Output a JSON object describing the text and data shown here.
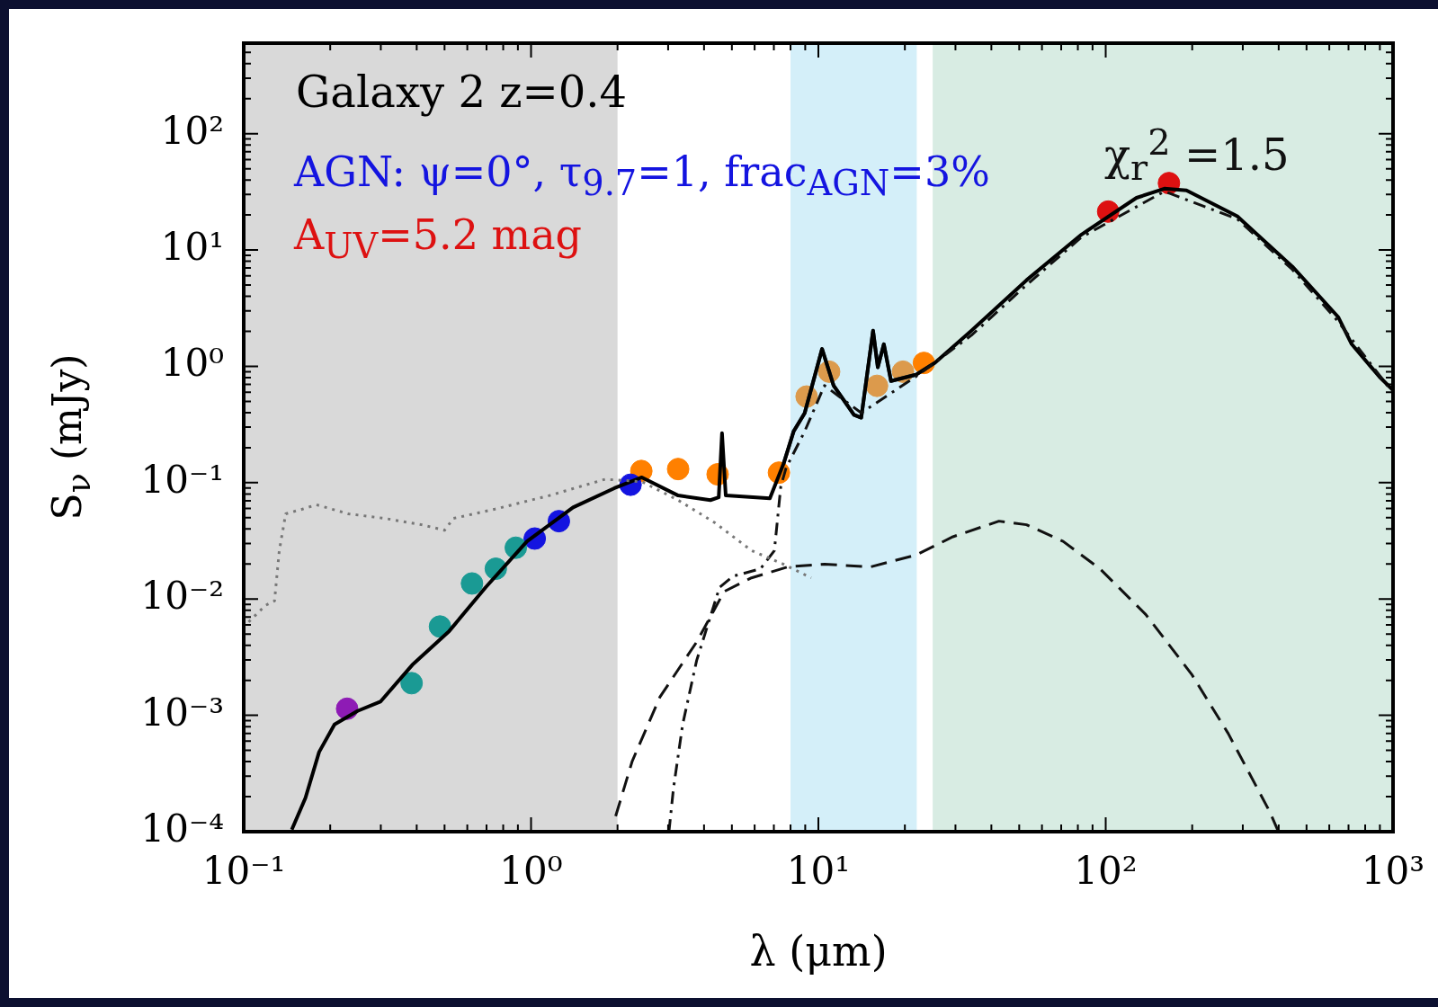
{
  "chart_data": {
    "type": "line",
    "xlabel": "λ (μm)",
    "ylabel": "S$_{ν}$ (mJy)",
    "log": "xy",
    "xlim": [
      0.1,
      1000
    ],
    "ylim": [
      0.0001,
      600
    ],
    "xticks": [
      {
        "value": 0.1,
        "label": "10⁻¹"
      },
      {
        "value": 0.2,
        "label": null
      },
      {
        "value": 0.3,
        "label": null
      },
      {
        "value": 0.4,
        "label": null
      },
      {
        "value": 0.5,
        "label": null
      },
      {
        "value": 0.6,
        "label": null
      },
      {
        "value": 0.7,
        "label": null
      },
      {
        "value": 0.8,
        "label": null
      },
      {
        "value": 0.9,
        "label": null
      },
      {
        "value": 1,
        "label": "10⁰"
      },
      {
        "value": 2,
        "label": null
      },
      {
        "value": 3,
        "label": null
      },
      {
        "value": 4,
        "label": null
      },
      {
        "value": 5,
        "label": null
      },
      {
        "value": 6,
        "label": null
      },
      {
        "value": 7,
        "label": null
      },
      {
        "value": 8,
        "label": null
      },
      {
        "value": 9,
        "label": null
      },
      {
        "value": 10,
        "label": "10¹"
      },
      {
        "value": 20,
        "label": null
      },
      {
        "value": 30,
        "label": null
      },
      {
        "value": 40,
        "label": null
      },
      {
        "value": 50,
        "label": null
      },
      {
        "value": 60,
        "label": null
      },
      {
        "value": 70,
        "label": null
      },
      {
        "value": 80,
        "label": null
      },
      {
        "value": 90,
        "label": null
      },
      {
        "value": 100,
        "label": "10²"
      },
      {
        "value": 200,
        "label": null
      },
      {
        "value": 300,
        "label": null
      },
      {
        "value": 400,
        "label": null
      },
      {
        "value": 500,
        "label": null
      },
      {
        "value": 600,
        "label": null
      },
      {
        "value": 700,
        "label": null
      },
      {
        "value": 800,
        "label": null
      },
      {
        "value": 900,
        "label": null
      },
      {
        "value": 1000,
        "label": "10³"
      }
    ],
    "yticks": [
      {
        "value": 0.0001,
        "label": "10⁻⁴"
      },
      {
        "value": 0.0002,
        "label": null
      },
      {
        "value": 0.0003,
        "label": null
      },
      {
        "value": 0.0004,
        "label": null
      },
      {
        "value": 0.0005,
        "label": null
      },
      {
        "value": 0.0006,
        "label": null
      },
      {
        "value": 0.0007,
        "label": null
      },
      {
        "value": 0.0008,
        "label": null
      },
      {
        "value": 0.0009,
        "label": null
      },
      {
        "value": 0.001,
        "label": "10⁻³"
      },
      {
        "value": 0.002,
        "label": null
      },
      {
        "value": 0.003,
        "label": null
      },
      {
        "value": 0.004,
        "label": null
      },
      {
        "value": 0.005,
        "label": null
      },
      {
        "value": 0.006,
        "label": null
      },
      {
        "value": 0.007,
        "label": null
      },
      {
        "value": 0.008,
        "label": null
      },
      {
        "value": 0.009,
        "label": null
      },
      {
        "value": 0.01,
        "label": "10⁻²"
      },
      {
        "value": 0.02,
        "label": null
      },
      {
        "value": 0.03,
        "label": null
      },
      {
        "value": 0.04,
        "label": null
      },
      {
        "value": 0.05,
        "label": null
      },
      {
        "value": 0.06,
        "label": null
      },
      {
        "value": 0.07,
        "label": null
      },
      {
        "value": 0.08,
        "label": null
      },
      {
        "value": 0.09,
        "label": null
      },
      {
        "value": 0.1,
        "label": "10⁻¹"
      },
      {
        "value": 0.2,
        "label": null
      },
      {
        "value": 0.3,
        "label": null
      },
      {
        "value": 0.4,
        "label": null
      },
      {
        "value": 0.5,
        "label": null
      },
      {
        "value": 0.6,
        "label": null
      },
      {
        "value": 0.7,
        "label": null
      },
      {
        "value": 0.8,
        "label": null
      },
      {
        "value": 0.9,
        "label": null
      },
      {
        "value": 1,
        "label": "10⁰"
      },
      {
        "value": 2,
        "label": null
      },
      {
        "value": 3,
        "label": null
      },
      {
        "value": 4,
        "label": null
      },
      {
        "value": 5,
        "label": null
      },
      {
        "value": 6,
        "label": null
      },
      {
        "value": 7,
        "label": null
      },
      {
        "value": 8,
        "label": null
      },
      {
        "value": 9,
        "label": null
      },
      {
        "value": 10,
        "label": "10¹"
      },
      {
        "value": 20,
        "label": null
      },
      {
        "value": 30,
        "label": null
      },
      {
        "value": 40,
        "label": null
      },
      {
        "value": 50,
        "label": null
      },
      {
        "value": 60,
        "label": null
      },
      {
        "value": 70,
        "label": null
      },
      {
        "value": 80,
        "label": null
      },
      {
        "value": 90,
        "label": null
      },
      {
        "value": 100,
        "label": "10²"
      },
      {
        "value": 200,
        "label": null
      },
      {
        "value": 300,
        "label": null
      },
      {
        "value": 400,
        "label": null
      },
      {
        "value": 500,
        "label": null
      }
    ],
    "bands": [
      {
        "axis": "x",
        "from": 0.1,
        "to": 2,
        "color": "#d9d9d9"
      },
      {
        "axis": "x",
        "from": 8,
        "to": 22,
        "color": "#d4eff9"
      },
      {
        "axis": "x",
        "from": 25,
        "to": 1000,
        "color": "#d8ece3"
      }
    ],
    "annotations": [
      "Galaxy 2 z=0.4",
      "AGN: ψ=0°, τ$_{9.7}$=1, frac$_{AGN}$=3%",
      "A$_{UV}$=5.2 mag",
      "χ$_{r}$$^{2}$ =1.5"
    ],
    "series": [
      {
        "type": "line",
        "color": "#777777",
        "line_style": "dotted",
        "marker": "none",
        "x": [
          0.104,
          0.119,
          0.128,
          0.133,
          0.14,
          0.16,
          0.179,
          0.231,
          0.31,
          0.416,
          0.5,
          0.537,
          0.748,
          1.16,
          1.81,
          2.43,
          3.25,
          4.37,
          5.85,
          7.57,
          9.44
        ],
        "values": [
          0.00635,
          0.00881,
          0.00964,
          0.0261,
          0.054,
          0.0592,
          0.0647,
          0.054,
          0.0493,
          0.0435,
          0.039,
          0.0493,
          0.0592,
          0.0776,
          0.107,
          0.102,
          0.0708,
          0.0451,
          0.0261,
          0.0199,
          0.0152
        ]
      },
      {
        "type": "line",
        "color": "#111111",
        "line_style": "dashed",
        "marker": "none",
        "x": [
          1.97,
          2.25,
          2.81,
          3.77,
          4.7,
          5.85,
          7.85,
          10.5,
          15.2,
          21.9,
          29.4,
          42.5,
          53,
          71.1,
          95.5,
          138,
          199,
          267,
          372,
          399
        ],
        "values": [
          0.000136,
          0.000404,
          0.00144,
          0.00427,
          0.0116,
          0.0152,
          0.0189,
          0.0199,
          0.0189,
          0.0239,
          0.0343,
          0.0467,
          0.0435,
          0.0313,
          0.0182,
          0.00734,
          0.00226,
          0.000697,
          0.000149,
          0.0001
        ]
      },
      {
        "type": "line",
        "color": "#111111",
        "line_style": "dashdot",
        "marker": "none",
        "x": [
          3.02,
          3.13,
          3.37,
          3.77,
          4.53,
          5.05,
          6.29,
          7.03,
          7.4,
          7.72,
          8.96,
          10.5,
          14.1,
          21.9,
          34.1,
          53,
          82.4,
          160,
          287,
          446,
          644,
          1000
        ],
        "values": [
          0.0001,
          0.000234,
          0.000834,
          0.00296,
          0.0126,
          0.0157,
          0.0182,
          0.0261,
          0.0931,
          0.134,
          0.276,
          0.684,
          0.398,
          0.82,
          1.85,
          5,
          12.9,
          31.9,
          18.5,
          6.8,
          2.43,
          0.59
        ]
      },
      {
        "type": "line",
        "color": "#000000",
        "line_style": "solid",
        "marker": "none",
        "x": [
          0.147,
          0.164,
          0.183,
          0.207,
          0.249,
          0.299,
          0.386,
          0.519,
          0.695,
          0.968,
          1.4,
          1.95,
          2.43,
          3.25,
          4.21,
          4.5,
          4.62,
          4.76,
          6.78,
          7.57,
          8.2,
          8.96,
          10.3,
          11.3,
          13.3,
          14.1,
          15.5,
          16.1,
          16.9,
          17.9,
          21.9,
          25.4,
          34.1,
          53,
          82.4,
          128,
          160,
          191,
          287,
          446,
          644,
          718,
          895,
          1000
        ],
        "values": [
          0.000104,
          0.000195,
          0.000484,
          0.000834,
          0.00109,
          0.00131,
          0.00271,
          0.0053,
          0.0126,
          0.0313,
          0.0612,
          0.0897,
          0.111,
          0.0776,
          0.0708,
          0.0748,
          0.266,
          0.0776,
          0.0735,
          0.146,
          0.276,
          0.396,
          1.41,
          0.684,
          0.383,
          0.362,
          2.03,
          0.982,
          1.55,
          0.748,
          0.849,
          1.07,
          2.03,
          5.5,
          13.6,
          28.1,
          33.7,
          32.5,
          19.5,
          7.21,
          2.66,
          1.55,
          0.818,
          0.624
        ]
      },
      {
        "type": "line",
        "color": "#243f4a",
        "line_style": "solid",
        "marker": "none",
        "x": [
          7.57,
          8.2,
          8.96,
          10.3,
          11.3,
          13.3,
          14.1,
          15.5,
          16.1,
          16.9,
          17.9,
          21.9,
          25.4
        ],
        "values": [
          0.146,
          0.276,
          0.396,
          1.41,
          0.684,
          0.383,
          0.362,
          2.03,
          0.982,
          1.55,
          0.748,
          0.849,
          1.07
        ]
      },
      {
        "type": "scatter",
        "color": "#8e1bb5",
        "marker": "circle",
        "x": [
          0.229
        ],
        "values": [
          0.00114
        ]
      },
      {
        "type": "scatter",
        "color": "#1a9a94",
        "marker": "circle",
        "x": [
          0.384,
          0.482,
          0.623,
          0.754,
          0.885
        ],
        "values": [
          0.00189,
          0.0058,
          0.0136,
          0.0182,
          0.0276
        ]
      },
      {
        "type": "scatter",
        "color": "#1414e0",
        "marker": "circle",
        "x": [
          1.03,
          1.25,
          2.22
        ],
        "values": [
          0.0331,
          0.0467,
          0.096
        ]
      },
      {
        "type": "scatter",
        "color": "#ff8000",
        "marker": "circle",
        "x": [
          2.42,
          3.25,
          4.46,
          7.29,
          23.3
        ],
        "values": [
          0.126,
          0.131,
          0.118,
          0.122,
          1.07
        ]
      },
      {
        "type": "scatter",
        "color": "#dc9a4c",
        "marker": "circle",
        "x": [
          9.1,
          10.9,
          16,
          19.7
        ],
        "values": [
          0.55,
          0.9,
          0.68,
          0.9
        ]
      },
      {
        "type": "scatter",
        "color": "#dd1111",
        "marker": "circle",
        "x": [
          102,
          166
        ],
        "values": [
          21.4,
          37.6
        ]
      }
    ]
  }
}
